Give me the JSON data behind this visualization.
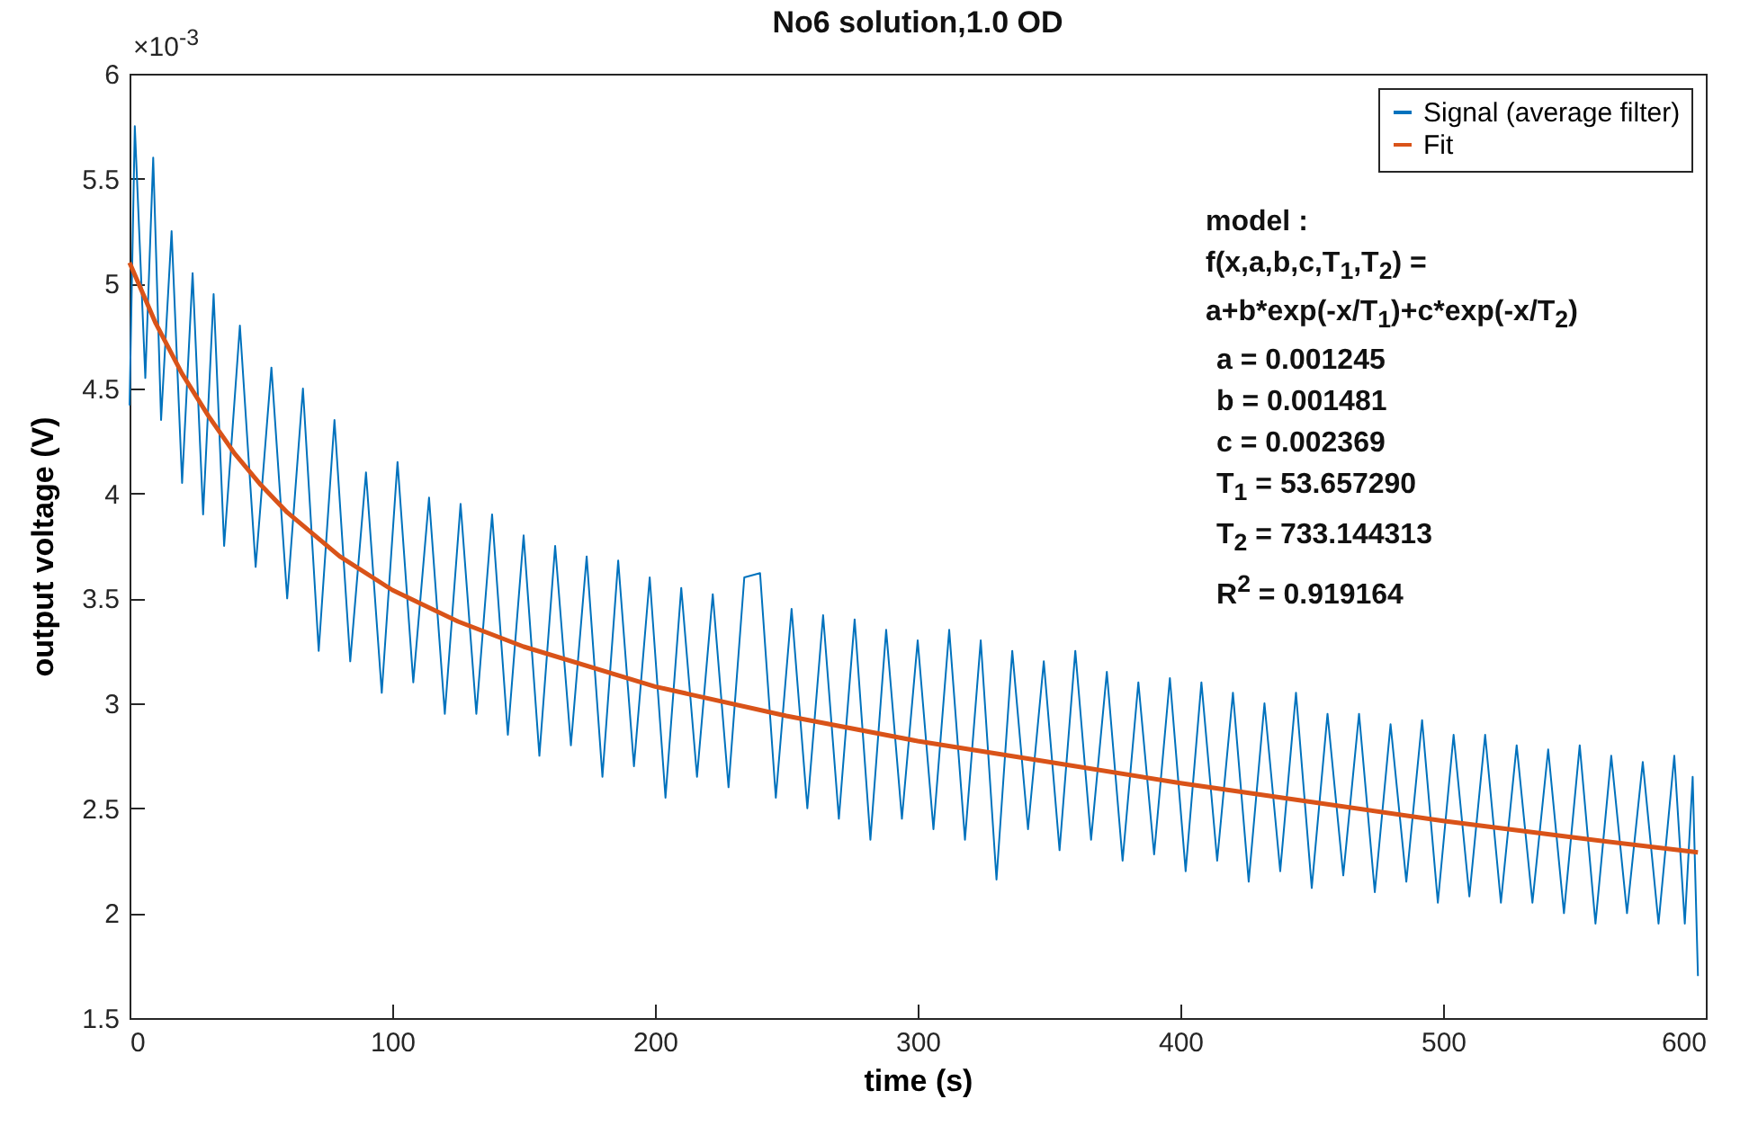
{
  "chart_data": {
    "type": "line",
    "title": "No6 solution,1.0 OD",
    "xlabel": "time (s)",
    "ylabel": "output voltage (V)",
    "xlim": [
      0,
      600
    ],
    "xticks": [
      0,
      100,
      200,
      300,
      400,
      500,
      600
    ],
    "ylim": [
      1.5,
      6
    ],
    "yticks": [
      1.5,
      2,
      2.5,
      3,
      3.5,
      4,
      4.5,
      5,
      5.5,
      6
    ],
    "grid": false,
    "legend": "top right",
    "annotations": [
      "×10$^{-3}$",
      "model :",
      "f(x,a,b,c,T$_{1}$,T$_{2}$) =",
      "a+b*exp(-x/T$_{1}$)+c*exp(-x/T$_{2}$)",
      "a = 0.001245",
      "b = 0.001481",
      "c = 0.002369",
      "T$_{1}$ = 53.657290",
      "T$_{2}$ = 733.144313",
      "R$^{2}$ = 0.919164"
    ],
    "series": [
      {
        "name": "Signal (average filter)",
        "color": "#0072bd",
        "x": [
          0,
          2,
          6,
          9,
          12,
          16,
          20,
          24,
          28,
          32,
          36,
          42,
          48,
          54,
          60,
          66,
          72,
          78,
          84,
          90,
          96,
          102,
          108,
          114,
          120,
          126,
          132,
          138,
          144,
          150,
          156,
          162,
          168,
          174,
          180,
          186,
          192,
          198,
          204,
          210,
          216,
          222,
          228,
          234,
          240,
          246,
          252,
          258,
          264,
          270,
          276,
          282,
          288,
          294,
          300,
          306,
          312,
          318,
          324,
          330,
          336,
          342,
          348,
          354,
          360,
          366,
          372,
          378,
          384,
          390,
          396,
          402,
          408,
          414,
          420,
          426,
          432,
          438,
          444,
          450,
          456,
          462,
          468,
          474,
          480,
          486,
          492,
          498,
          504,
          510,
          516,
          522,
          528,
          534,
          540,
          546,
          552,
          558,
          564,
          570,
          576,
          582,
          588,
          592,
          595,
          597
        ],
        "values": [
          4.42,
          5.75,
          4.55,
          5.6,
          4.35,
          5.25,
          4.05,
          5.05,
          3.9,
          4.95,
          3.75,
          4.8,
          3.65,
          4.6,
          3.5,
          4.5,
          3.25,
          4.35,
          3.2,
          4.1,
          3.05,
          4.15,
          3.1,
          3.98,
          2.95,
          3.95,
          2.95,
          3.9,
          2.85,
          3.8,
          2.75,
          3.75,
          2.8,
          3.7,
          2.65,
          3.68,
          2.7,
          3.6,
          2.55,
          3.55,
          2.65,
          3.52,
          2.6,
          3.6,
          3.62,
          2.55,
          3.45,
          2.5,
          3.42,
          2.45,
          3.4,
          2.35,
          3.35,
          2.45,
          3.3,
          2.4,
          3.35,
          2.35,
          3.3,
          2.16,
          3.25,
          2.4,
          3.2,
          2.3,
          3.25,
          2.35,
          3.15,
          2.25,
          3.1,
          2.28,
          3.12,
          2.2,
          3.1,
          2.25,
          3.05,
          2.15,
          3.0,
          2.2,
          3.05,
          2.12,
          2.95,
          2.18,
          2.95,
          2.1,
          2.9,
          2.15,
          2.92,
          2.05,
          2.85,
          2.08,
          2.85,
          2.05,
          2.8,
          2.05,
          2.78,
          2.0,
          2.8,
          1.95,
          2.75,
          2.0,
          2.72,
          1.95,
          2.75,
          1.95,
          2.65,
          1.7
        ]
      },
      {
        "name": "Fit",
        "color": "#d95319",
        "x": [
          0,
          10,
          20,
          30,
          40,
          50,
          60,
          80,
          100,
          125,
          150,
          200,
          250,
          300,
          350,
          400,
          450,
          500,
          550,
          597
        ],
        "values": [
          5.1,
          4.81,
          4.57,
          4.37,
          4.19,
          4.04,
          3.91,
          3.7,
          3.54,
          3.39,
          3.27,
          3.08,
          2.94,
          2.82,
          2.72,
          2.62,
          2.53,
          2.44,
          2.36,
          2.29
        ]
      }
    ]
  }
}
